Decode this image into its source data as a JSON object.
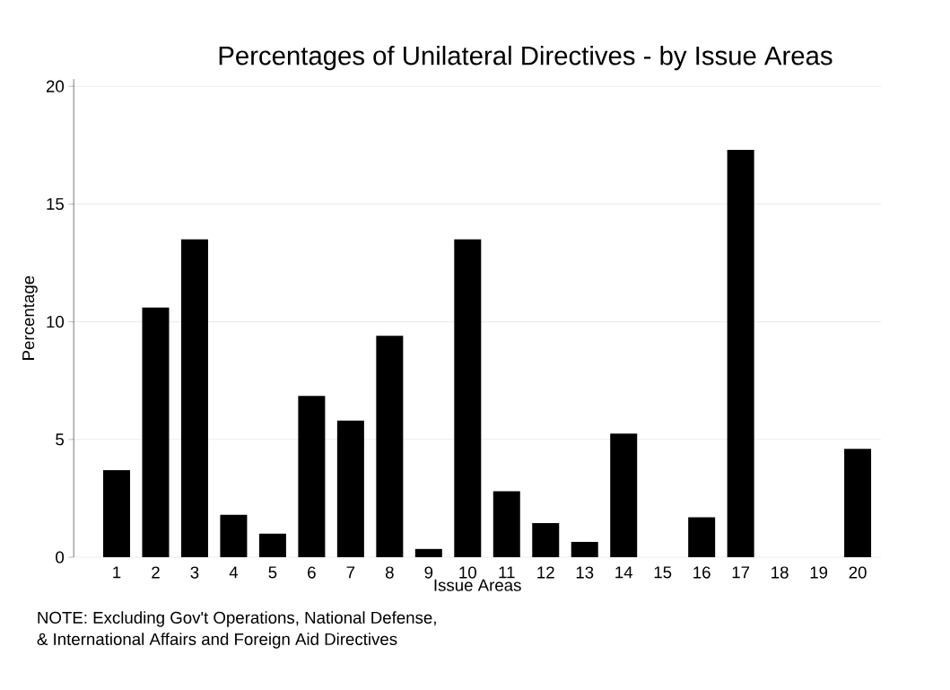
{
  "chart_data": {
    "type": "bar",
    "title": "Percentages of Unilateral Directives - by Issue Areas",
    "xlabel": "Issue Areas",
    "ylabel": "Percentage",
    "categories": [
      "1",
      "2",
      "3",
      "4",
      "5",
      "6",
      "7",
      "8",
      "9",
      "10",
      "11",
      "12",
      "13",
      "14",
      "15",
      "16",
      "17",
      "18",
      "19",
      "20"
    ],
    "values": [
      3.7,
      10.6,
      13.5,
      1.8,
      1.0,
      6.85,
      5.8,
      9.4,
      0.35,
      13.5,
      2.8,
      1.45,
      0.65,
      5.25,
      0,
      1.7,
      17.3,
      0,
      0,
      4.6
    ],
    "color": "#000000",
    "ylim": [
      0,
      20.3
    ],
    "yticks": [
      0,
      5,
      10,
      15,
      20
    ],
    "grid": "y",
    "annotations": [
      "NOTE: Excluding Gov't Operations, National Defense,",
      "& International Affairs and Foreign Aid Directives"
    ]
  }
}
